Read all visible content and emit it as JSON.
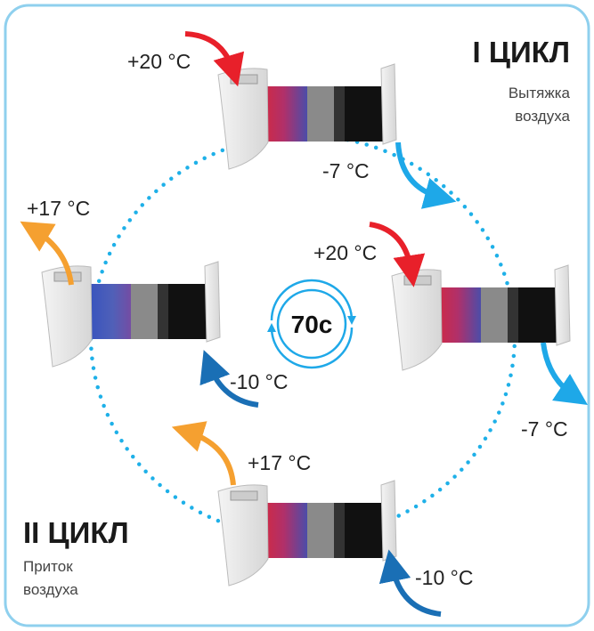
{
  "cycles": [
    {
      "title": "I ЦИКЛ",
      "subtitle": [
        "Вытяжка",
        "воздуха"
      ]
    },
    {
      "title": "II ЦИКЛ",
      "subtitle": [
        "Приток",
        "воздуха"
      ]
    }
  ],
  "timer": "70с",
  "temperatures": [
    "+20 °C",
    "-7 °C",
    "+17 °C",
    "+20 °C",
    "-10 °C",
    "-7 °C",
    "+17 °C",
    "-10 °C"
  ]
}
